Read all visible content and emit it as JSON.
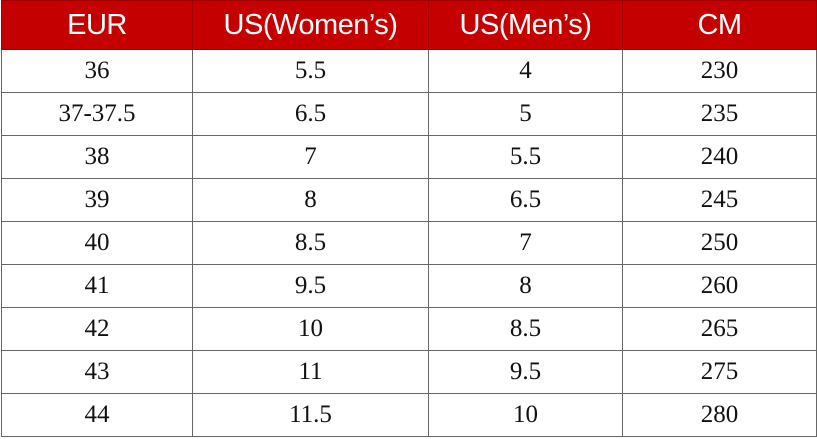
{
  "table": {
    "headers": [
      "EUR",
      "US(Women’s)",
      "US(Men’s)",
      "CM"
    ],
    "rows": [
      [
        "36",
        "5.5",
        "4",
        "230"
      ],
      [
        "37-37.5",
        "6.5",
        "5",
        "235"
      ],
      [
        "38",
        "7",
        "5.5",
        "240"
      ],
      [
        "39",
        "8",
        "6.5",
        "245"
      ],
      [
        "40",
        "8.5",
        "7",
        "250"
      ],
      [
        "41",
        "9.5",
        "8",
        "260"
      ],
      [
        "42",
        "10",
        "8.5",
        "265"
      ],
      [
        "43",
        "11",
        "9.5",
        "275"
      ],
      [
        "44",
        "11.5",
        "10",
        "280"
      ]
    ]
  }
}
